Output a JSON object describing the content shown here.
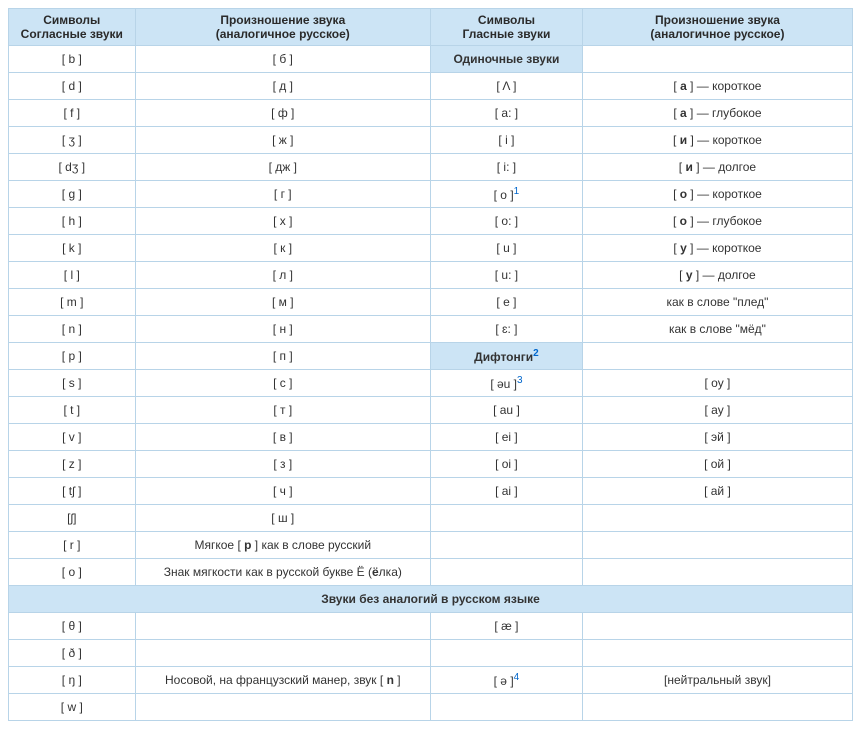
{
  "headers": {
    "col1_l1": "Символы",
    "col1_l2": "Согласные звуки",
    "col2_l1": "Произношение звука",
    "col2_l2": "(аналогичное русское)",
    "col3_l1": "Символы",
    "col3_l2": "Гласные звуки",
    "col4_l1": "Произношение звука",
    "col4_l2": "(аналогичное русское)"
  },
  "sections": {
    "single_vowels": "Одиночные звуки",
    "diphthongs": "Дифтонги",
    "diphthongs_sup": "2",
    "no_analog": "Звуки без аналогий в русском языке"
  },
  "rows": [
    {
      "c1": "[ b ]",
      "c2": "[ б ]",
      "c3_sect": true,
      "c4": ""
    },
    {
      "c1": "[ d ]",
      "c2": "[ д ]",
      "c3": "[ Λ ]",
      "c4": "[ а ] — короткое",
      "c4b": "а"
    },
    {
      "c1": "[ f ]",
      "c2": "[ ф ]",
      "c3": "[ a: ]",
      "c4": "[ а ] — глубокое",
      "c4b": "а"
    },
    {
      "c1": "[ ʒ ]",
      "c2": "[ ж ]",
      "c3": "[ i ]",
      "c4": "[ и ] — короткое",
      "c4b": "и"
    },
    {
      "c1": "[ dʒ ]",
      "c2": "[ дж ]",
      "c3": "[ i: ]",
      "c4": "[ и ] — долгое",
      "c4b": "и"
    },
    {
      "c1": "[ g ]",
      "c2": "[ г ]",
      "c3": "[ o ]",
      "c3sup": "1",
      "c4": "[ о ] — короткое",
      "c4b": "о"
    },
    {
      "c1": "[ h ]",
      "c2": "[ х ]",
      "c3": "[ o: ]",
      "c4": "[ о ] — глубокое",
      "c4b": "о"
    },
    {
      "c1": "[ k ]",
      "c2": "[ к ]",
      "c3": "[ u ]",
      "c4": "[ у ] — короткое",
      "c4b": "у"
    },
    {
      "c1": "[ l ]",
      "c2": "[ л ]",
      "c3": "[ u: ]",
      "c4": "[ у ] — долгое",
      "c4b": "у"
    },
    {
      "c1": "[ m ]",
      "c2": "[ м ]",
      "c3": "[ e ]",
      "c4": "как в слове \"плед\""
    },
    {
      "c1": "[ n ]",
      "c2": "[ н ]",
      "c3": "[ ɛ: ]",
      "c4": "как в слове \"мёд\""
    },
    {
      "c1": "[ p ]",
      "c2": "[ п ]",
      "c3_dipht": true,
      "c4": ""
    },
    {
      "c1": "[ s ]",
      "c2": "[ с ]",
      "c3": "[ əu ]",
      "c3sup": "3",
      "c4": "[ оу ]"
    },
    {
      "c1": "[ t ]",
      "c2": "[ т ]",
      "c3": "[ au ]",
      "c4": "[ ау ]"
    },
    {
      "c1": "[ v ]",
      "c2": "[ в ]",
      "c3": "[ ei ]",
      "c4": "[ эй ]"
    },
    {
      "c1": "[ z ]",
      "c2": "[ з ]",
      "c3": "[ oi ]",
      "c4": "[ ой ]"
    },
    {
      "c1": "[ tʃ ]",
      "c2": "[ ч ]",
      "c3": "[ ai ]",
      "c4": "[ ай ]"
    },
    {
      "c1": "[ʃ]",
      "c2": "[ ш ]",
      "c3": "",
      "c4": ""
    },
    {
      "c1": "[ r ]",
      "c2": "Мягкое [ р ] как в слове русский",
      "c2b": "р",
      "c3": "",
      "c4": ""
    },
    {
      "c1": "[ о ]",
      "c2": "Знак мягкости как в русской букве Ё (ёлка)",
      "c2b": "ё",
      "c3": "",
      "c4": ""
    }
  ],
  "noanalog_rows": [
    {
      "c1": "[ θ ]",
      "c2": "",
      "c3": "[ æ ]",
      "c4": ""
    },
    {
      "c1": "[ ð ]",
      "c2": "",
      "c3": "",
      "c4": ""
    },
    {
      "c1": "[ ŋ ]",
      "c2": "Носовой, на французский манер, звук [ n ]",
      "c2b": "n",
      "c3": "[ ə ]",
      "c3sup": "4",
      "c4": "[нейтральный звук]"
    },
    {
      "c1": "[ w ]",
      "c2": "",
      "c3": "",
      "c4": ""
    }
  ]
}
